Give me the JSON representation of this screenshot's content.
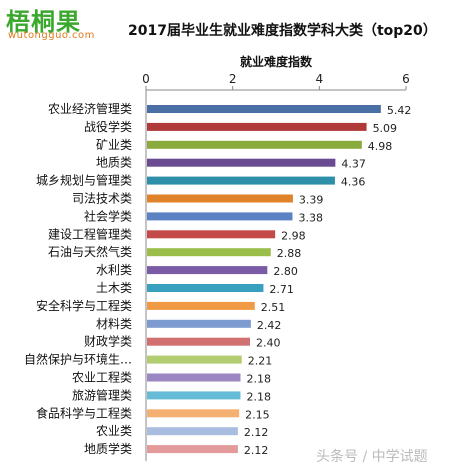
{
  "logo": {
    "text": "梧桐果",
    "subtext": "wutongguo.com"
  },
  "watermark": "头条号 / 中学试题",
  "chart_data": {
    "type": "bar",
    "orientation": "horizontal",
    "title": "2017届毕业生就业难度指数学科大类（top20）",
    "xlabel": "就业难度指数",
    "ylabel": "",
    "xlim": [
      0,
      6
    ],
    "xticks": [
      0,
      2,
      4,
      6
    ],
    "axis_position": "top",
    "grid": false,
    "legend": "none",
    "data_labels": true,
    "categories": [
      "农业经济管理类",
      "战役学类",
      "矿业类",
      "地质类",
      "城乡规划与管理类",
      "司法技术类",
      "社会学类",
      "建设工程管理类",
      "石油与天然气类",
      "水利类",
      "土木类",
      "安全科学与工程类",
      "材料类",
      "财政学类",
      "自然保护与环境生…",
      "农业工程类",
      "旅游管理类",
      "食品科学与工程类",
      "农业类",
      "地质学类"
    ],
    "values": [
      5.42,
      5.09,
      4.98,
      4.37,
      4.36,
      3.39,
      3.38,
      2.98,
      2.88,
      2.8,
      2.71,
      2.51,
      2.42,
      2.4,
      2.21,
      2.18,
      2.18,
      2.15,
      2.12,
      2.12
    ],
    "colors": [
      "#4a6fa5",
      "#b03a3a",
      "#8aaa3c",
      "#6a4a90",
      "#2e8fa8",
      "#e0822a",
      "#5b83c4",
      "#c44a4a",
      "#9bbd4a",
      "#7b5aa6",
      "#3aa0c0",
      "#f09a45",
      "#7d9bd0",
      "#d07070",
      "#b2cc70",
      "#9a86c0",
      "#66bcd6",
      "#f4b070",
      "#a9bde0",
      "#e29a9a"
    ]
  }
}
